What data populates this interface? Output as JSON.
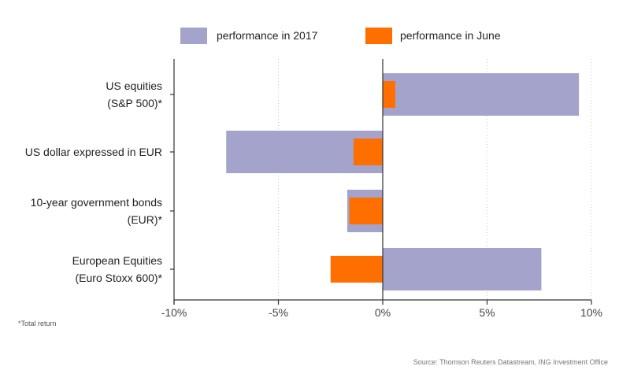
{
  "chart_data": {
    "type": "bar",
    "orientation": "horizontal",
    "categories": [
      [
        "US equities",
        "(S&P 500)*"
      ],
      [
        "US dollar expressed in EUR"
      ],
      [
        "10-year government bonds",
        "(EUR)*"
      ],
      [
        "European Equities",
        "(Euro Stoxx 600)*"
      ]
    ],
    "series": [
      {
        "name": "performance in 2017",
        "color": "#a3a3cb",
        "values": [
          9.4,
          -7.5,
          -1.7,
          7.6
        ]
      },
      {
        "name": "performance in June",
        "color": "#ff6f00",
        "values": [
          0.6,
          -1.4,
          -1.6,
          -2.5
        ]
      }
    ],
    "xlim": [
      -10,
      10
    ],
    "xticks": [
      -10,
      -5,
      0,
      5,
      10
    ],
    "xtick_labels": [
      "-10%",
      "-5%",
      "0%",
      "5%",
      "10%"
    ],
    "grid": true,
    "legend_position": "top"
  },
  "footnote": "*Total return",
  "source": "Source: Thomson Reuters Datastream, ING Investment Office"
}
